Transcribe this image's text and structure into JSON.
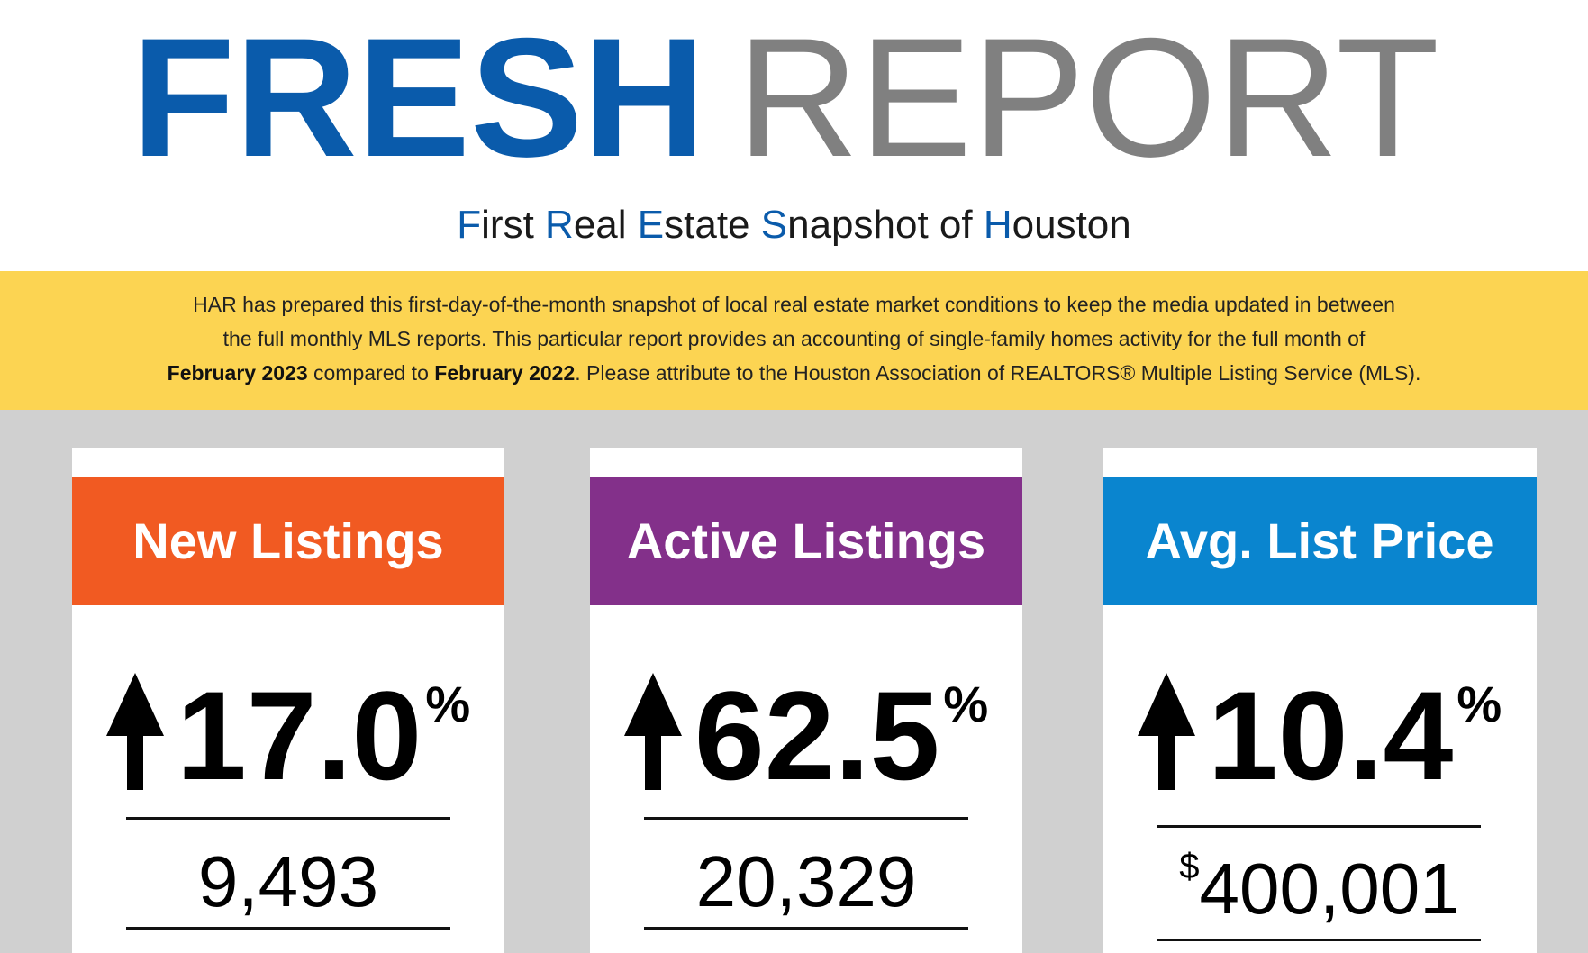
{
  "logo": {
    "word1": "FRESH",
    "word2": "REPORT"
  },
  "subtitle": [
    {
      "cap": "F",
      "rest": "irst "
    },
    {
      "cap": "R",
      "rest": "eal "
    },
    {
      "cap": "E",
      "rest": "state "
    },
    {
      "cap": "S",
      "rest": "napshot of "
    },
    {
      "cap": "H",
      "rest": "ouston"
    }
  ],
  "intro": {
    "line1": "HAR has prepared this first-day-of-the-month snapshot of local real estate market conditions to keep the media updated in between",
    "line2": "the full monthly MLS reports. This particular report provides an accounting of single-family homes activity for the full month of",
    "bold1": "February 2023",
    "mid": " compared to ",
    "bold2": "February 2022",
    "end": ". Please attribute to the Houston Association of REALTORS® Multiple Listing Service (MLS)."
  },
  "colors": {
    "orange": "#f15a22",
    "purple": "#83308a",
    "blue": "#0a85cf",
    "yellow": "#fcd452"
  },
  "cards": [
    {
      "title": "New Listings",
      "change": "17.0",
      "unit": "%",
      "direction": "up-arrow-icon",
      "currency": "",
      "value": "9,493"
    },
    {
      "title": "Active Listings",
      "change": "62.5",
      "unit": "%",
      "direction": "up-arrow-icon",
      "currency": "",
      "value": "20,329"
    },
    {
      "title": "Avg. List Price",
      "change": "10.4",
      "unit": "%",
      "direction": "up-arrow-icon",
      "currency": "$",
      "value": "400,001"
    }
  ]
}
